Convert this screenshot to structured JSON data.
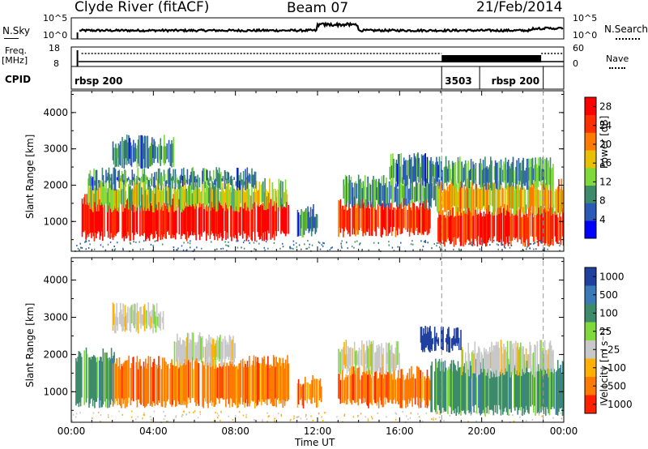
{
  "header": {
    "station": "Clyde River (fitACF)",
    "beam": "Beam 07",
    "date": "21/Feb/2014"
  },
  "top_panels": {
    "nsky_label": "N.Sky",
    "nsearch_label": "N.Search",
    "nsky_ticks": [
      "10^5",
      "10^0"
    ],
    "nsearch_ticks": [
      "10^5",
      "10^0"
    ],
    "freq_label": "Freq.",
    "freq_unit": "[MHz]",
    "freq_ticks": [
      "18",
      "8"
    ],
    "nave_label": "Nave",
    "nave_ticks": [
      "60",
      "0"
    ],
    "cpid_label": "CPID",
    "cpid_segments": [
      {
        "start_h": 0.0,
        "end_h": 18.05,
        "text": "rbsp 200"
      },
      {
        "start_h": 18.05,
        "end_h": 19.9,
        "text": "3503"
      },
      {
        "start_h": 19.9,
        "end_h": 23.0,
        "text": "rbsp 200"
      }
    ]
  },
  "chart_data": [
    {
      "type": "heatmap",
      "title": "",
      "xlabel": "Time UT",
      "ylabel": "Slant Range [km]",
      "xlim": [
        0,
        24
      ],
      "ylim": [
        180,
        4600
      ],
      "xticks": [
        "00:00",
        "04:00",
        "08:00",
        "12:00",
        "16:00",
        "20:00",
        "00:00"
      ],
      "yticks": [
        "1000",
        "2000",
        "3000",
        "4000"
      ],
      "colorbar": {
        "label": "Power [dB]",
        "ticks": [
          "4",
          "8",
          "12",
          "16",
          "20",
          "24",
          "28"
        ],
        "range": [
          0,
          30
        ],
        "colors": [
          "#0000ff",
          "#2a5ab5",
          "#3d8b6a",
          "#7fd93a",
          "#e8c000",
          "#ff7a00",
          "#ff3000",
          "#ff0000"
        ]
      },
      "bands": [
        {
          "t0": 0.5,
          "t1": 10.6,
          "r0": 600,
          "r1": 1600,
          "value": 28
        },
        {
          "t0": 0.8,
          "t1": 10.5,
          "r0": 1400,
          "r1": 2000,
          "value": 14
        },
        {
          "t0": 0.8,
          "t1": 9.0,
          "r0": 2000,
          "r1": 2300,
          "value": 8
        },
        {
          "t0": 2.0,
          "t1": 5.0,
          "r0": 2600,
          "r1": 3200,
          "value": 8
        },
        {
          "t0": 11.0,
          "t1": 12.0,
          "r0": 700,
          "r1": 1300,
          "value": 8
        },
        {
          "t0": 13.0,
          "t1": 17.5,
          "r0": 700,
          "r1": 1500,
          "value": 24
        },
        {
          "t0": 13.2,
          "t1": 18.0,
          "r0": 1500,
          "r1": 2100,
          "value": 10
        },
        {
          "t0": 15.5,
          "t1": 18.0,
          "r0": 2100,
          "r1": 2700,
          "value": 8
        },
        {
          "t0": 17.8,
          "t1": 24.0,
          "r0": 450,
          "r1": 1300,
          "value": 26
        },
        {
          "t0": 17.8,
          "t1": 24.0,
          "r0": 1300,
          "r1": 2000,
          "value": 18
        },
        {
          "t0": 18.0,
          "t1": 23.5,
          "r0": 2000,
          "r1": 2600,
          "value": 10
        }
      ]
    },
    {
      "type": "heatmap",
      "title": "",
      "xlabel": "Time UT",
      "ylabel": "Slant Range [km]",
      "xlim": [
        0,
        24
      ],
      "ylim": [
        180,
        4600
      ],
      "xticks": [
        "00:00",
        "04:00",
        "08:00",
        "12:00",
        "16:00",
        "20:00",
        "00:00"
      ],
      "yticks": [
        "1000",
        "2000",
        "3000",
        "4000"
      ],
      "colorbar": {
        "label": "Velocity [m s⁻¹]",
        "ticks": [
          "1000",
          "500",
          "100",
          "25",
          "−25",
          "−100",
          "−500",
          "−1000"
        ],
        "colors": [
          "#2040a0",
          "#3a7ab8",
          "#3d8b6a",
          "#7fd93a",
          "#c8c8c8",
          "#ffb000",
          "#ff7a00",
          "#ff2000"
        ]
      },
      "bands": [
        {
          "t0": 0.2,
          "t1": 2.2,
          "r0": 700,
          "r1": 2000,
          "cls": 2
        },
        {
          "t0": 2.0,
          "t1": 10.6,
          "r0": 700,
          "r1": 1800,
          "cls": 6
        },
        {
          "t0": 5.0,
          "t1": 8.0,
          "r0": 1800,
          "r1": 2400,
          "cls": 4
        },
        {
          "t0": 2.0,
          "t1": 4.5,
          "r0": 2700,
          "r1": 3200,
          "cls": 4
        },
        {
          "t0": 11.0,
          "t1": 12.2,
          "r0": 700,
          "r1": 1300,
          "cls": 6
        },
        {
          "t0": 13.0,
          "t1": 17.5,
          "r0": 700,
          "r1": 1500,
          "cls": 6
        },
        {
          "t0": 13.0,
          "t1": 16.0,
          "r0": 1600,
          "r1": 2200,
          "cls": 4
        },
        {
          "t0": 17.5,
          "t1": 24.0,
          "r0": 500,
          "r1": 1700,
          "cls": 2
        },
        {
          "t0": 19.0,
          "t1": 23.5,
          "r0": 1500,
          "r1": 2200,
          "cls": 4
        },
        {
          "t0": 17.0,
          "t1": 19.0,
          "r0": 2200,
          "r1": 2600,
          "cls": 0
        }
      ]
    }
  ]
}
